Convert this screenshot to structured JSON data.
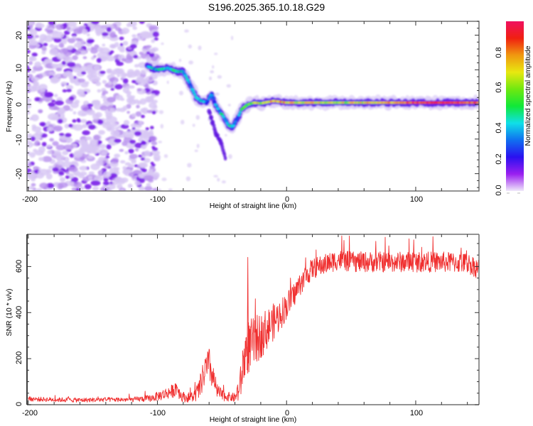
{
  "title": "S196.2025.365.10.18.G29",
  "chart_data": [
    {
      "type": "heatmap",
      "name": "spectrogram",
      "title": "S196.2025.365.10.18.G29",
      "xlabel": "Height of straight line (km)",
      "ylabel": "Frequency (Hz)",
      "xlim": [
        -201,
        149
      ],
      "ylim": [
        -25,
        24
      ],
      "xticks": [
        -200,
        -100,
        0,
        100
      ],
      "yticks": [
        -20,
        -10,
        0,
        10,
        20
      ],
      "colorbar": {
        "label": "Normalized spectral amplitude",
        "range": [
          0.0,
          1.0
        ],
        "ticks": [
          0.0,
          0.2,
          0.4,
          0.6,
          0.8
        ],
        "colormap": [
          "#f0e8fa",
          "#9a1ff0",
          "#2a10f0",
          "#1070f0",
          "#10e0e8",
          "#10e838",
          "#70e810",
          "#e8e810",
          "#f09810",
          "#f02010",
          "#f01060"
        ]
      },
      "noise_region_x": [
        -200,
        -100
      ],
      "ridge": {
        "description": "dominant frequency track",
        "x": [
          -108,
          -100,
          -92,
          -85,
          -80,
          -75,
          -70,
          -66,
          -62,
          -58,
          -55,
          -52,
          -48,
          -45,
          -42,
          -38,
          -35,
          -30,
          -25,
          -20,
          -10,
          0,
          10,
          20,
          40,
          60,
          80,
          100,
          120,
          149
        ],
        "y": [
          11,
          10,
          10.5,
          9.5,
          9.5,
          6,
          2,
          1,
          0.5,
          3,
          0,
          -2,
          -4,
          -6,
          -6.5,
          -4,
          -1.5,
          0,
          0.5,
          0.3,
          1,
          0.5,
          0.5,
          0.5,
          0.5,
          0.5,
          0.5,
          0.5,
          0.5,
          0.5
        ],
        "amplitude": [
          0.3,
          0.4,
          0.35,
          0.45,
          0.4,
          0.3,
          0.35,
          0.4,
          0.3,
          0.35,
          0.3,
          0.35,
          0.4,
          0.45,
          0.4,
          0.35,
          0.45,
          0.55,
          0.65,
          0.7,
          0.8,
          0.75,
          0.7,
          0.75,
          0.65,
          0.7,
          0.8,
          0.9,
          0.95,
          0.85
        ]
      },
      "branch": {
        "description": "faint descending branch",
        "x": [
          -60,
          -55,
          -50,
          -47
        ],
        "y": [
          -2,
          -8,
          -12,
          -16
        ],
        "amplitude": [
          0.15,
          0.12,
          0.1,
          0.08
        ]
      }
    },
    {
      "type": "line",
      "name": "snr",
      "xlabel": "Height of straight line (km)",
      "ylabel": "SNR (10 * v/v)",
      "xlim": [
        -201,
        149
      ],
      "ylim": [
        0,
        740
      ],
      "xticks": [
        -200,
        -100,
        0,
        100
      ],
      "yticks": [
        0,
        200,
        400,
        600
      ],
      "color": "#f03030",
      "series": [
        {
          "name": "SNR envelope",
          "x": [
            -200,
            -180,
            -160,
            -140,
            -120,
            -105,
            -95,
            -88,
            -85,
            -82,
            -78,
            -72,
            -68,
            -63,
            -60,
            -57,
            -54,
            -50,
            -45,
            -40,
            -36,
            -33,
            -30,
            -25,
            -20,
            -15,
            -10,
            -5,
            0,
            5,
            10,
            15,
            20,
            25,
            30,
            40,
            50,
            60,
            80,
            100,
            120,
            140,
            149
          ],
          "y": [
            25,
            22,
            20,
            22,
            22,
            28,
            45,
            60,
            80,
            40,
            30,
            35,
            60,
            150,
            170,
            120,
            60,
            40,
            35,
            30,
            80,
            200,
            250,
            270,
            300,
            330,
            360,
            390,
            430,
            470,
            520,
            560,
            590,
            600,
            610,
            630,
            620,
            620,
            620,
            620,
            620,
            615,
            590
          ],
          "noise": [
            10,
            10,
            10,
            10,
            10,
            15,
            25,
            30,
            40,
            25,
            20,
            25,
            45,
            70,
            80,
            60,
            35,
            25,
            20,
            20,
            70,
            110,
            120,
            110,
            100,
            90,
            80,
            70,
            60,
            55,
            50,
            50,
            45,
            45,
            45,
            45,
            45,
            45,
            45,
            45,
            45,
            45,
            45
          ]
        }
      ],
      "annotations": [
        {
          "x": -30,
          "y": 640,
          "text": "spike"
        }
      ]
    }
  ]
}
